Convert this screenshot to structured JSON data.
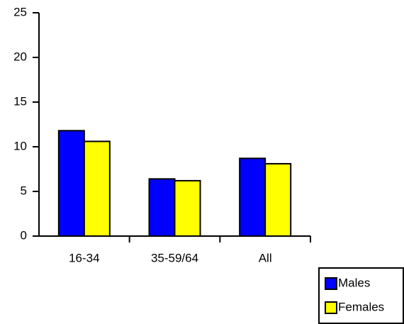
{
  "chart_data": {
    "type": "bar",
    "categories": [
      "16-34",
      "35-59/64",
      "All"
    ],
    "series": [
      {
        "name": "Males",
        "color": "#0000ff",
        "values": [
          11.8,
          6.4,
          8.7
        ]
      },
      {
        "name": "Females",
        "color": "#ffff00",
        "values": [
          10.6,
          6.2,
          8.1
        ]
      }
    ],
    "ylim": [
      0,
      25
    ],
    "yticks": [
      0,
      5,
      10,
      15,
      20,
      25
    ],
    "legend": "bottom-right"
  }
}
